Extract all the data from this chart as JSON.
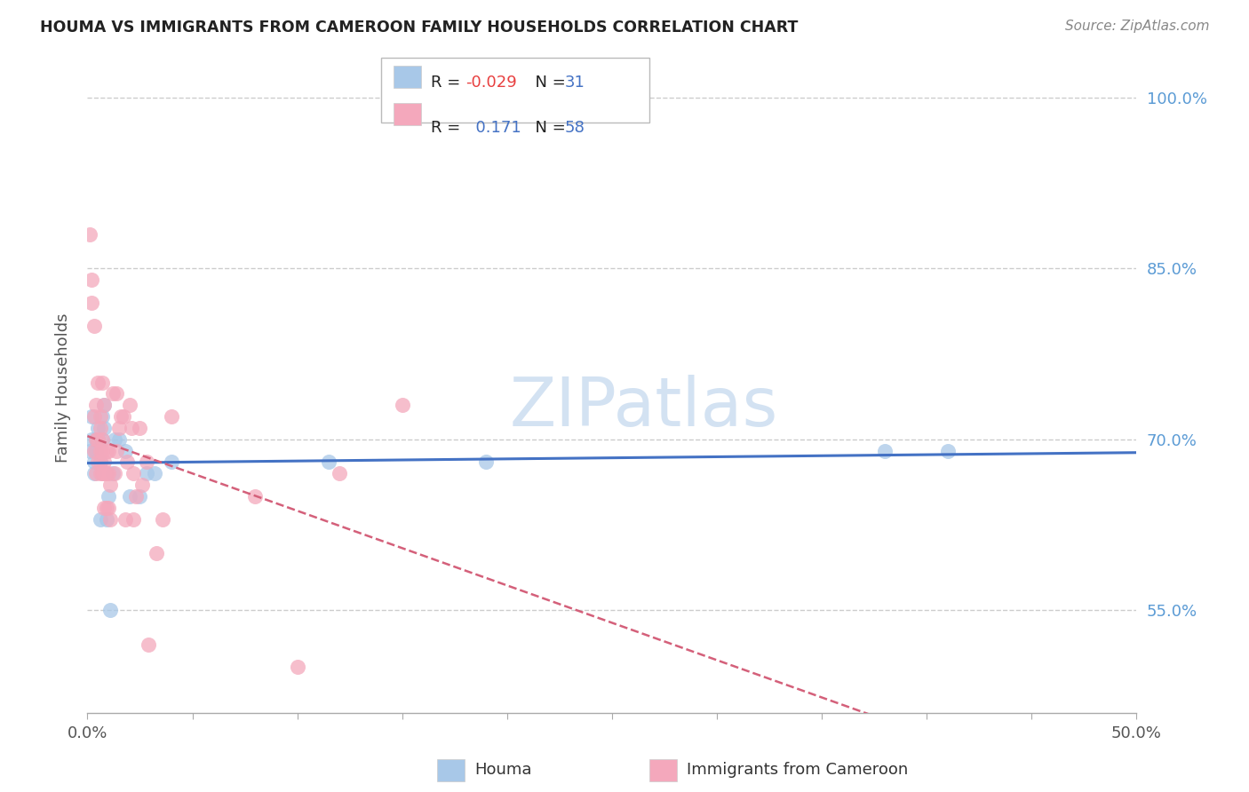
{
  "title": "HOUMA VS IMMIGRANTS FROM CAMEROON FAMILY HOUSEHOLDS CORRELATION CHART",
  "source": "Source: ZipAtlas.com",
  "ylabel": "Family Households",
  "xlim": [
    0.0,
    0.5
  ],
  "ylim": [
    0.46,
    1.03
  ],
  "ytick_labels": [
    "55.0%",
    "70.0%",
    "85.0%",
    "100.0%"
  ],
  "ytick_vals": [
    0.55,
    0.7,
    0.85,
    1.0
  ],
  "houma_R": -0.029,
  "houma_N": 31,
  "cameroon_R": 0.171,
  "cameroon_N": 58,
  "houma_color": "#a8c8e8",
  "cameroon_color": "#f4a8bc",
  "houma_line_color": "#4472c4",
  "cameroon_line_color": "#d4607a",
  "watermark": "ZIPatlas",
  "legend_R_label_color": "#222222",
  "legend_RN_color": "#4472c4",
  "legend_R_neg_color": "#e84040",
  "houma_x": [
    0.001,
    0.002,
    0.002,
    0.003,
    0.003,
    0.004,
    0.004,
    0.005,
    0.005,
    0.006,
    0.006,
    0.007,
    0.007,
    0.008,
    0.008,
    0.009,
    0.01,
    0.011,
    0.012,
    0.013,
    0.015,
    0.018,
    0.02,
    0.025,
    0.028,
    0.032,
    0.04,
    0.115,
    0.19,
    0.38,
    0.41
  ],
  "houma_y": [
    0.69,
    0.7,
    0.72,
    0.68,
    0.67,
    0.7,
    0.69,
    0.71,
    0.7,
    0.63,
    0.68,
    0.72,
    0.7,
    0.71,
    0.73,
    0.63,
    0.65,
    0.55,
    0.67,
    0.7,
    0.7,
    0.69,
    0.65,
    0.65,
    0.67,
    0.67,
    0.68,
    0.68,
    0.68,
    0.69,
    0.69
  ],
  "cameroon_x": [
    0.001,
    0.002,
    0.002,
    0.003,
    0.003,
    0.003,
    0.004,
    0.004,
    0.004,
    0.005,
    0.005,
    0.005,
    0.006,
    0.006,
    0.006,
    0.006,
    0.006,
    0.007,
    0.007,
    0.007,
    0.007,
    0.008,
    0.008,
    0.008,
    0.008,
    0.009,
    0.009,
    0.009,
    0.01,
    0.01,
    0.01,
    0.011,
    0.011,
    0.012,
    0.013,
    0.014,
    0.014,
    0.015,
    0.016,
    0.017,
    0.018,
    0.019,
    0.02,
    0.021,
    0.022,
    0.022,
    0.023,
    0.025,
    0.026,
    0.028,
    0.029,
    0.033,
    0.036,
    0.04,
    0.08,
    0.1,
    0.12,
    0.15
  ],
  "cameroon_y": [
    0.88,
    0.82,
    0.84,
    0.69,
    0.72,
    0.8,
    0.67,
    0.7,
    0.73,
    0.68,
    0.7,
    0.75,
    0.67,
    0.68,
    0.69,
    0.71,
    0.72,
    0.67,
    0.69,
    0.7,
    0.75,
    0.64,
    0.67,
    0.68,
    0.73,
    0.64,
    0.67,
    0.69,
    0.64,
    0.67,
    0.69,
    0.63,
    0.66,
    0.74,
    0.67,
    0.69,
    0.74,
    0.71,
    0.72,
    0.72,
    0.63,
    0.68,
    0.73,
    0.71,
    0.63,
    0.67,
    0.65,
    0.71,
    0.66,
    0.68,
    0.52,
    0.6,
    0.63,
    0.72,
    0.65,
    0.5,
    0.67,
    0.73
  ]
}
